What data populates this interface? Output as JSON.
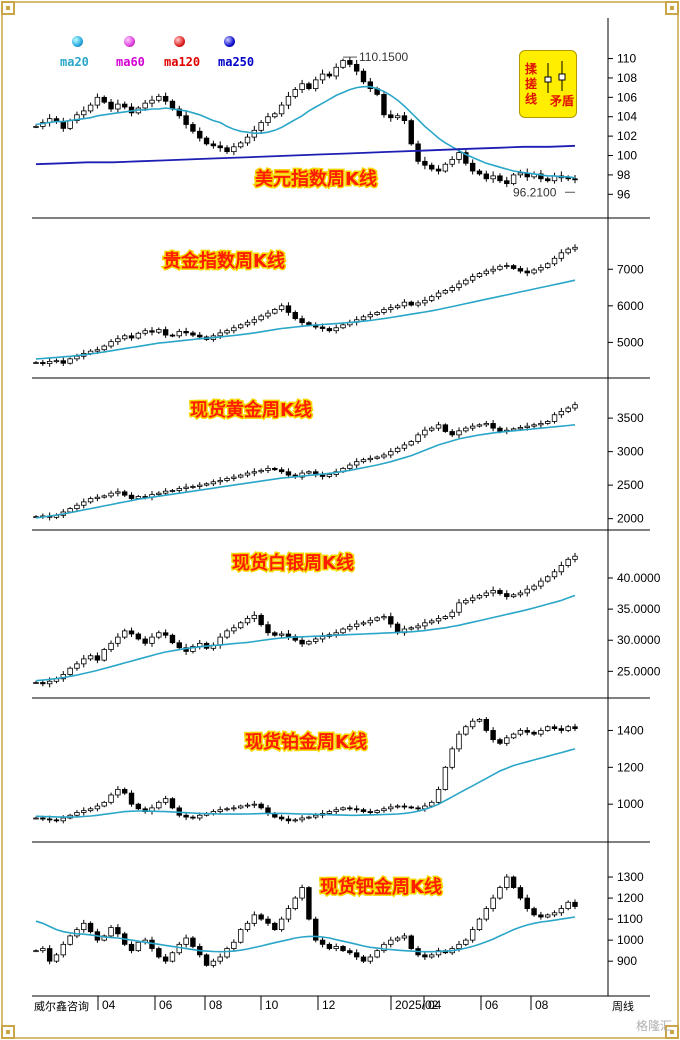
{
  "legend": [
    {
      "label": "ma20",
      "color": "#2aa6c8",
      "dot": "#29a8e0"
    },
    {
      "label": "ma60",
      "color": "#d400d4",
      "dot": "#e040e0"
    },
    {
      "label": "ma120",
      "color": "#e00000",
      "dot": "#e02020"
    },
    {
      "label": "ma250",
      "color": "#0000c8",
      "dot": "#1010d0"
    }
  ],
  "badge": {
    "line1": "揉",
    "line2": "搓",
    "line3": "线",
    "right": "矛盾"
  },
  "x_axis": {
    "labels": [
      "04",
      "06",
      "08",
      "10",
      "12",
      "2025/02",
      "04",
      "06",
      "08"
    ],
    "left_label": "威尔鑫咨询",
    "right_label": "周线"
  },
  "watermark": "格隆汇",
  "colors": {
    "candle": "#000000",
    "ma": "#2aa6c8",
    "ma250": "#1e1eb4",
    "title": "#ff1e00"
  },
  "chart_data": [
    {
      "type": "candlestick",
      "title": "美元指数周K线",
      "ylim": [
        95,
        111.5
      ],
      "yticks": [
        "110",
        "108",
        "106",
        "104",
        "102",
        "100",
        "98",
        "96"
      ],
      "annotations": [
        {
          "text": "110.1500",
          "value": 110.15
        },
        {
          "text": "96.2100",
          "value": 96.21
        }
      ],
      "close": [
        103.0,
        103.4,
        103.8,
        103.5,
        102.8,
        103.6,
        104.2,
        104.6,
        105.2,
        106.0,
        105.5,
        104.8,
        105.3,
        105.0,
        104.4,
        104.9,
        105.4,
        105.7,
        106.1,
        105.6,
        104.8,
        104.1,
        103.2,
        102.5,
        101.8,
        101.2,
        101.0,
        100.8,
        100.4,
        100.9,
        101.3,
        101.9,
        102.6,
        103.4,
        104.0,
        104.3,
        105.2,
        106.1,
        106.8,
        107.4,
        106.9,
        107.8,
        108.4,
        108.2,
        109.1,
        109.8,
        109.4,
        108.7,
        107.6,
        106.9,
        106.3,
        104.2,
        103.9,
        104.1,
        103.6,
        101.2,
        99.4,
        99.0,
        98.6,
        98.4,
        99.1,
        99.6,
        100.3,
        99.2,
        98.4,
        98.1,
        97.6,
        97.9,
        97.4,
        97.1,
        98.0,
        98.2,
        97.8,
        98.1,
        97.6,
        97.4,
        97.9,
        97.7,
        97.6,
        97.5
      ],
      "ma20": [
        103.2,
        103.3,
        103.4,
        103.5,
        103.5,
        103.6,
        103.7,
        103.8,
        103.9,
        104.1,
        104.2,
        104.3,
        104.4,
        104.5,
        104.6,
        104.7,
        104.7,
        104.8,
        104.8,
        104.9,
        104.8,
        104.7,
        104.6,
        104.4,
        104.2,
        103.9,
        103.6,
        103.4,
        103.0,
        102.7,
        102.5,
        102.4,
        102.3,
        102.3,
        102.4,
        102.6,
        102.9,
        103.3,
        103.7,
        104.1,
        104.6,
        105.0,
        105.4,
        105.8,
        106.2,
        106.5,
        106.8,
        107.0,
        107.1,
        107.1,
        106.9,
        106.6,
        106.2,
        105.7,
        105.1,
        104.4,
        103.7,
        103.0,
        102.4,
        101.8,
        101.3,
        100.9,
        100.5,
        100.1,
        99.8,
        99.5,
        99.2,
        99.0,
        98.8,
        98.6,
        98.4,
        98.3,
        98.2,
        98.1,
        98.0,
        97.9,
        97.9,
        97.8,
        97.8,
        97.7
      ],
      "ma250": [
        99.1,
        99.2,
        99.3,
        99.3,
        99.4,
        99.5,
        99.6,
        99.7,
        99.8,
        99.9,
        100.0,
        100.1,
        100.2,
        100.3,
        100.4,
        100.5,
        100.6,
        100.7,
        100.8,
        100.9,
        100.9,
        101.0
      ]
    },
    {
      "type": "candlestick",
      "title": "贵金指数周K线",
      "ylim": [
        4300,
        7800
      ],
      "yticks": [
        "7000",
        "6000",
        "5000"
      ],
      "close": [
        4450,
        4420,
        4480,
        4500,
        4430,
        4550,
        4620,
        4700,
        4760,
        4800,
        4900,
        5020,
        5100,
        5180,
        5120,
        5250,
        5320,
        5280,
        5350,
        5200,
        5180,
        5300,
        5260,
        5200,
        5150,
        5080,
        5180,
        5260,
        5320,
        5400,
        5480,
        5550,
        5620,
        5720,
        5800,
        5900,
        6000,
        5820,
        5650,
        5540,
        5480,
        5420,
        5380,
        5320,
        5400,
        5480,
        5550,
        5620,
        5700,
        5760,
        5820,
        5900,
        5950,
        6000,
        6100,
        6020,
        6080,
        6150,
        6250,
        6350,
        6420,
        6500,
        6600,
        6700,
        6800,
        6880,
        6950,
        7000,
        7080,
        7100,
        7020,
        6950,
        6900,
        6980,
        7050,
        7150,
        7300,
        7450,
        7550,
        7600
      ],
      "ma": [
        4550,
        4560,
        4575,
        4590,
        4605,
        4620,
        4640,
        4660,
        4685,
        4710,
        4740,
        4770,
        4800,
        4830,
        4860,
        4890,
        4920,
        4950,
        4980,
        5000,
        5020,
        5040,
        5060,
        5080,
        5100,
        5115,
        5130,
        5150,
        5170,
        5190,
        5210,
        5235,
        5260,
        5290,
        5320,
        5350,
        5380,
        5400,
        5420,
        5440,
        5460,
        5475,
        5490,
        5500,
        5515,
        5530,
        5545,
        5560,
        5580,
        5600,
        5625,
        5650,
        5680,
        5710,
        5740,
        5770,
        5800,
        5830,
        5865,
        5900,
        5940,
        5980,
        6020,
        6060,
        6100,
        6140,
        6180,
        6220,
        6260,
        6300,
        6340,
        6380,
        6420,
        6460,
        6500,
        6540,
        6580,
        6620,
        6660,
        6700
      ]
    },
    {
      "type": "candlestick",
      "title": "现货黄金周K线",
      "ylim": [
        1950,
        3800
      ],
      "yticks": [
        "3500",
        "3000",
        "2500",
        "2000"
      ],
      "close": [
        2030,
        2040,
        2020,
        2050,
        2100,
        2150,
        2200,
        2250,
        2300,
        2320,
        2340,
        2380,
        2400,
        2350,
        2300,
        2330,
        2320,
        2360,
        2380,
        2410,
        2420,
        2450,
        2470,
        2480,
        2500,
        2520,
        2550,
        2570,
        2600,
        2620,
        2650,
        2680,
        2700,
        2720,
        2750,
        2730,
        2700,
        2650,
        2620,
        2680,
        2700,
        2650,
        2630,
        2660,
        2700,
        2750,
        2800,
        2850,
        2880,
        2900,
        2920,
        2950,
        3000,
        3050,
        3100,
        3150,
        3250,
        3320,
        3350,
        3400,
        3300,
        3250,
        3310,
        3350,
        3380,
        3400,
        3420,
        3350,
        3300,
        3320,
        3340,
        3360,
        3380,
        3400,
        3420,
        3450,
        3550,
        3600,
        3650,
        3700
      ],
      "ma": [
        2010,
        2025,
        2040,
        2055,
        2070,
        2090,
        2110,
        2130,
        2150,
        2170,
        2190,
        2210,
        2230,
        2250,
        2270,
        2290,
        2305,
        2320,
        2335,
        2350,
        2365,
        2380,
        2395,
        2410,
        2425,
        2440,
        2455,
        2470,
        2485,
        2500,
        2515,
        2530,
        2545,
        2560,
        2575,
        2590,
        2605,
        2615,
        2625,
        2635,
        2645,
        2655,
        2665,
        2675,
        2690,
        2705,
        2720,
        2740,
        2760,
        2780,
        2800,
        2825,
        2850,
        2880,
        2910,
        2940,
        2980,
        3020,
        3060,
        3100,
        3130,
        3160,
        3190,
        3210,
        3230,
        3250,
        3265,
        3280,
        3290,
        3300,
        3310,
        3320,
        3330,
        3340,
        3350,
        3360,
        3370,
        3380,
        3390,
        3400
      ]
    },
    {
      "type": "candlestick",
      "title": "现货白银周K线",
      "ylim": [
        22000,
        44500
      ],
      "yticks": [
        "40.0000",
        "35.0000",
        "30.0000",
        "25.0000"
      ],
      "close": [
        23200,
        23000,
        23400,
        23800,
        24500,
        25500,
        26200,
        27000,
        27500,
        26800,
        28500,
        29500,
        30500,
        31500,
        31000,
        30200,
        29500,
        30500,
        31200,
        30800,
        29600,
        28800,
        28200,
        29000,
        29500,
        28700,
        29200,
        30500,
        31500,
        32000,
        32800,
        33500,
        34000,
        32500,
        31200,
        30800,
        31000,
        30600,
        30000,
        29400,
        29800,
        30200,
        30600,
        30900,
        31200,
        31800,
        32200,
        32600,
        32800,
        33200,
        33600,
        33800,
        32600,
        31200,
        31800,
        32000,
        32300,
        32800,
        33100,
        33500,
        33800,
        34500,
        36000,
        36400,
        36800,
        37200,
        37600,
        38000,
        37500,
        37000,
        37300,
        37600,
        38200,
        38700,
        39500,
        40200,
        41000,
        42000,
        43000,
        43500
      ],
      "ma": [
        23500,
        23600,
        23700,
        23850,
        24000,
        24200,
        24400,
        24650,
        24900,
        25150,
        25450,
        25750,
        26050,
        26350,
        26650,
        26950,
        27250,
        27550,
        27850,
        28100,
        28300,
        28500,
        28650,
        28800,
        28950,
        29050,
        29150,
        29250,
        29350,
        29450,
        29550,
        29650,
        29800,
        29950,
        30100,
        30250,
        30350,
        30450,
        30500,
        30550,
        30600,
        30650,
        30700,
        30750,
        30800,
        30850,
        30900,
        30950,
        31000,
        31050,
        31100,
        31150,
        31200,
        31250,
        31300,
        31350,
        31450,
        31550,
        31700,
        31850,
        32000,
        32200,
        32400,
        32650,
        32900,
        33150,
        33400,
        33650,
        33900,
        34150,
        34400,
        34650,
        34900,
        35200,
        35500,
        35800,
        36100,
        36400,
        36800,
        37200
      ]
    },
    {
      "type": "candlestick",
      "title": "现货铂金周K线",
      "ylim": [
        860,
        1500
      ],
      "yticks": [
        "1400",
        "1200",
        "1000"
      ],
      "close": [
        925,
        920,
        915,
        910,
        925,
        940,
        955,
        965,
        975,
        990,
        1010,
        1050,
        1080,
        1060,
        1000,
        975,
        960,
        980,
        1010,
        1030,
        980,
        940,
        930,
        925,
        940,
        950,
        960,
        970,
        975,
        980,
        990,
        995,
        1000,
        980,
        950,
        930,
        920,
        910,
        915,
        925,
        930,
        940,
        950,
        960,
        970,
        980,
        975,
        970,
        960,
        955,
        965,
        975,
        985,
        990,
        985,
        980,
        975,
        990,
        1010,
        1080,
        1200,
        1300,
        1380,
        1420,
        1450,
        1460,
        1400,
        1350,
        1330,
        1360,
        1380,
        1400,
        1390,
        1380,
        1400,
        1420,
        1410,
        1400,
        1420,
        1410
      ],
      "ma": [
        935,
        933,
        932,
        931,
        930,
        930,
        931,
        933,
        936,
        940,
        945,
        950,
        955,
        960,
        962,
        963,
        963,
        962,
        961,
        960,
        958,
        956,
        954,
        952,
        950,
        949,
        948,
        947,
        946,
        946,
        946,
        947,
        948,
        949,
        950,
        950,
        950,
        949,
        948,
        947,
        946,
        945,
        944,
        943,
        942,
        941,
        940,
        940,
        941,
        942,
        943,
        944,
        945,
        947,
        950,
        955,
        962,
        972,
        985,
        1000,
        1020,
        1040,
        1060,
        1080,
        1100,
        1120,
        1140,
        1160,
        1180,
        1195,
        1210,
        1220,
        1230,
        1240,
        1250,
        1260,
        1270,
        1280,
        1290,
        1300
      ]
    },
    {
      "type": "candlestick",
      "title": "现货钯金周K线",
      "ylim": [
        820,
        1400
      ],
      "yticks": [
        "1300",
        "1200",
        "1100",
        "1000",
        "900"
      ],
      "close": [
        950,
        960,
        900,
        930,
        980,
        1020,
        1050,
        1080,
        1040,
        1000,
        1020,
        1060,
        1030,
        980,
        950,
        990,
        1000,
        960,
        920,
        900,
        940,
        980,
        1010,
        970,
        930,
        880,
        900,
        920,
        960,
        990,
        1050,
        1080,
        1120,
        1100,
        1080,
        1050,
        1100,
        1150,
        1200,
        1250,
        1100,
        1000,
        980,
        960,
        970,
        950,
        940,
        920,
        900,
        920,
        950,
        980,
        1000,
        1010,
        1020,
        960,
        930,
        920,
        930,
        950,
        940,
        960,
        980,
        1000,
        1050,
        1100,
        1150,
        1200,
        1250,
        1300,
        1250,
        1200,
        1150,
        1120,
        1110,
        1120,
        1130,
        1150,
        1180,
        1160
      ],
      "ma": [
        1090,
        1080,
        1065,
        1050,
        1040,
        1035,
        1030,
        1028,
        1025,
        1020,
        1015,
        1012,
        1010,
        1005,
        1000,
        995,
        990,
        985,
        980,
        975,
        970,
        965,
        960,
        955,
        950,
        948,
        946,
        945,
        946,
        948,
        952,
        958,
        965,
        972,
        980,
        988,
        995,
        1002,
        1010,
        1015,
        1018,
        1018,
        1015,
        1010,
        1002,
        995,
        988,
        980,
        972,
        966,
        962,
        958,
        955,
        952,
        950,
        948,
        946,
        945,
        945,
        946,
        948,
        950,
        955,
        962,
        970,
        980,
        992,
        1005,
        1020,
        1035,
        1050,
        1062,
        1072,
        1080,
        1086,
        1090,
        1095,
        1100,
        1105,
        1110
      ]
    }
  ]
}
